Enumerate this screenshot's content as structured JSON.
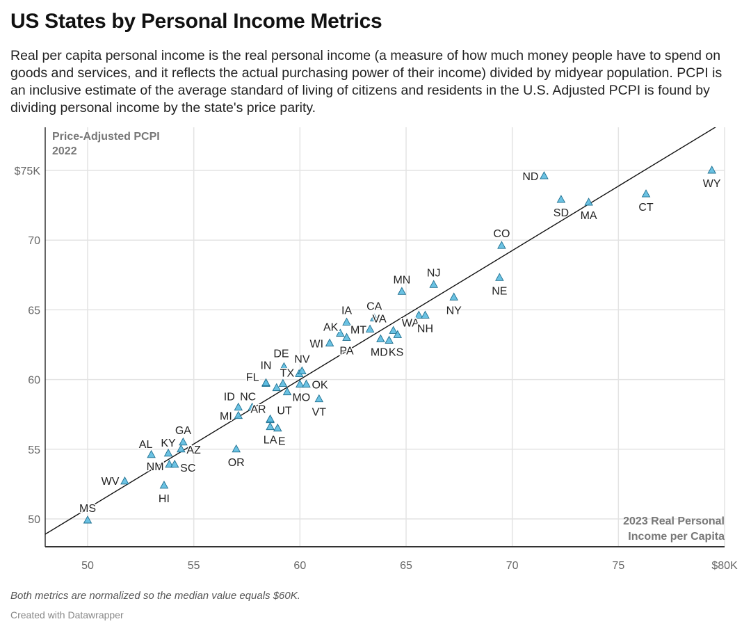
{
  "header": {
    "title": "US States by Personal Income Metrics",
    "subtitle": "Real per capita personal income is the real personal income (a measure of how much money people have to spend on goods and services, and it reflects the actual purchasing power of their income) divided by midyear population. PCPI is an inclusive estimate of the average standard of living of citizens and residents in the U.S. Adjusted PCPI is found by dividing personal income by the state's price parity."
  },
  "footer": {
    "note": "Both metrics are normalized so the median value equals $60K.",
    "credit": "Created with Datawrapper"
  },
  "chart_data": {
    "type": "scatter",
    "title": "",
    "ylabel_lines": [
      "Price-Adjusted PCPI",
      "2022"
    ],
    "xlabel_lines": [
      "2023 Real Personal",
      "Income per Capita"
    ],
    "xlim": [
      48,
      80
    ],
    "ylim": [
      48,
      78
    ],
    "x_ticks": [
      50,
      55,
      60,
      65,
      70,
      75,
      80
    ],
    "x_tick_labels": [
      "50",
      "55",
      "60",
      "65",
      "70",
      "75",
      "$80K"
    ],
    "y_ticks": [
      50,
      55,
      60,
      65,
      70,
      75
    ],
    "y_tick_labels": [
      "50",
      "55",
      "60",
      "65",
      "70",
      "$75K"
    ],
    "grid": true,
    "marker": "triangle",
    "marker_color": "#5bbbe0",
    "marker_stroke": "#1f6f8f",
    "trendline": [
      [
        48,
        48.9
      ],
      [
        80,
        78.5
      ]
    ],
    "points": [
      {
        "label": "MS",
        "x": 50.0,
        "y": 49.9
      },
      {
        "label": "WV",
        "x": 51.75,
        "y": 52.7
      },
      {
        "label": "AL",
        "x": 53.0,
        "y": 54.6
      },
      {
        "label": "KY",
        "x": 53.8,
        "y": 54.7
      },
      {
        "label": "GA",
        "x": 54.5,
        "y": 55.5
      },
      {
        "label": "AZ",
        "x": 54.4,
        "y": 55.0
      },
      {
        "label": "NM",
        "x": 53.85,
        "y": 53.9
      },
      {
        "label": "SC",
        "x": 54.1,
        "y": 53.9
      },
      {
        "label": "HI",
        "x": 53.6,
        "y": 52.4
      },
      {
        "label": "OR",
        "x": 57.0,
        "y": 55.0
      },
      {
        "label": "MI",
        "x": 57.1,
        "y": 57.4
      },
      {
        "label": "ID",
        "x": 57.1,
        "y": 58.0
      },
      {
        "label": "NC",
        "x": 57.75,
        "y": 58.0
      },
      {
        "label": "FL",
        "x": 58.4,
        "y": 59.7
      },
      {
        "label": "IN",
        "x": 58.4,
        "y": 59.75
      },
      {
        "label": "AR",
        "x": 58.6,
        "y": 57.1
      },
      {
        "label": "",
        "x": 58.6,
        "y": 57.15
      },
      {
        "label": "LA",
        "x": 58.6,
        "y": 56.6
      },
      {
        "label": "E",
        "x": 58.95,
        "y": 56.5
      },
      {
        "label": "",
        "x": 58.9,
        "y": 59.4
      },
      {
        "label": "TX",
        "x": 59.2,
        "y": 59.7
      },
      {
        "label": "DE",
        "x": 59.25,
        "y": 60.9
      },
      {
        "label": "UT",
        "x": 59.4,
        "y": 59.1
      },
      {
        "label": "",
        "x": 59.96,
        "y": 60.4
      },
      {
        "label": "NV",
        "x": 60.1,
        "y": 60.6
      },
      {
        "label": "MO",
        "x": 60.0,
        "y": 59.65
      },
      {
        "label": "OK",
        "x": 60.3,
        "y": 59.65
      },
      {
        "label": "VT",
        "x": 60.9,
        "y": 58.6
      },
      {
        "label": "WI",
        "x": 61.4,
        "y": 62.6
      },
      {
        "label": "AK",
        "x": 61.9,
        "y": 63.3
      },
      {
        "label": "IA",
        "x": 62.2,
        "y": 64.1
      },
      {
        "label": "PA",
        "x": 62.2,
        "y": 63.0
      },
      {
        "label": "MT",
        "x": 63.3,
        "y": 63.6
      },
      {
        "label": "CA",
        "x": 63.5,
        "y": 64.4
      },
      {
        "label": "MD",
        "x": 63.8,
        "y": 62.9
      },
      {
        "label": "KS",
        "x": 64.2,
        "y": 62.8
      },
      {
        "label": "VA",
        "x": 64.4,
        "y": 63.5
      },
      {
        "label": "WA",
        "x": 64.6,
        "y": 63.2
      },
      {
        "label": "",
        "x": 65.6,
        "y": 64.6
      },
      {
        "label": "NH",
        "x": 65.9,
        "y": 64.6
      },
      {
        "label": "NY",
        "x": 67.25,
        "y": 65.9
      },
      {
        "label": "MN",
        "x": 64.8,
        "y": 66.3
      },
      {
        "label": "NJ",
        "x": 66.3,
        "y": 66.8
      },
      {
        "label": "NE",
        "x": 69.4,
        "y": 67.3
      },
      {
        "label": "CO",
        "x": 69.5,
        "y": 69.6
      },
      {
        "label": "ND",
        "x": 71.5,
        "y": 74.6
      },
      {
        "label": "SD",
        "x": 72.3,
        "y": 72.9
      },
      {
        "label": "MA",
        "x": 73.6,
        "y": 72.7
      },
      {
        "label": "CT",
        "x": 76.3,
        "y": 73.3
      },
      {
        "label": "WY",
        "x": 79.4,
        "y": 75.0
      }
    ]
  }
}
